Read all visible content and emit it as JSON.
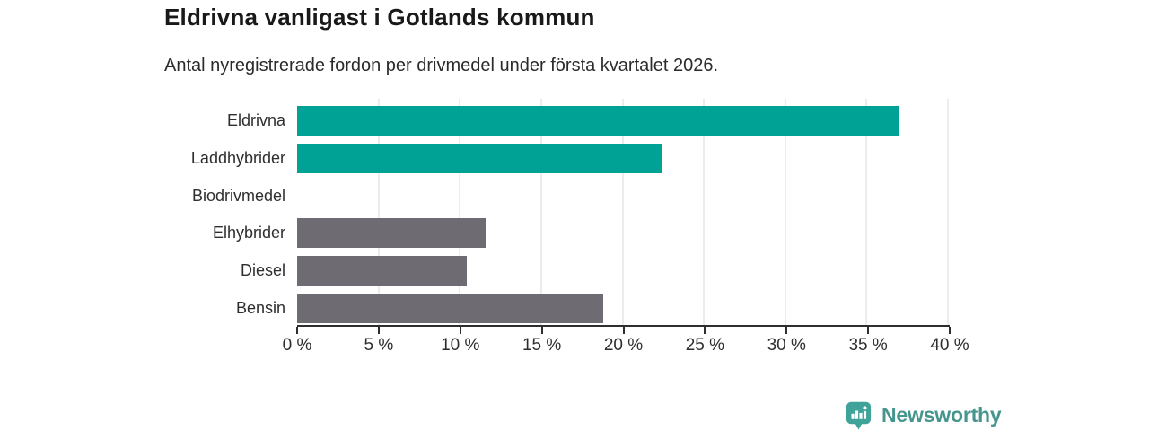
{
  "title": "Eldrivna vanligast i Gotlands kommun",
  "subtitle": "Antal nyregistrerade fordon per drivmedel under första kvartalet 2026.",
  "colors": {
    "highlight_teal": "#00a296",
    "neutral_gray": "#6e6b72",
    "axis": "#2e2e2e",
    "gridline": "#ececec",
    "brand_teal": "#47968e"
  },
  "chart_data": {
    "type": "bar",
    "orientation": "horizontal",
    "title": "Eldrivna vanligast i Gotlands kommun",
    "subtitle": "Antal nyregistrerade fordon per drivmedel under första kvartalet 2026.",
    "categories": [
      "Eldrivna",
      "Laddhybrider",
      "Biodrivmedel",
      "Elhybrider",
      "Diesel",
      "Bensin"
    ],
    "values": [
      37,
      22.4,
      0,
      11.6,
      10.4,
      18.8
    ],
    "unit": "%",
    "bar_colors": [
      "#00a296",
      "#00a296",
      "#6e6b72",
      "#6e6b72",
      "#6e6b72",
      "#6e6b72"
    ],
    "highlighted": [
      true,
      true,
      false,
      false,
      false,
      false
    ],
    "xlim": [
      0,
      40
    ],
    "tick_values": [
      0,
      5,
      10,
      15,
      20,
      25,
      30,
      35,
      40
    ],
    "tick_labels": [
      "0 %",
      "5 %",
      "10 %",
      "15 %",
      "20 %",
      "25 %",
      "30 %",
      "35 %",
      "40 %"
    ],
    "grid": true,
    "legend": false
  },
  "footer": {
    "brand": "Newsworthy",
    "logo_icon": "bar-chart-speech-bubble-icon"
  }
}
